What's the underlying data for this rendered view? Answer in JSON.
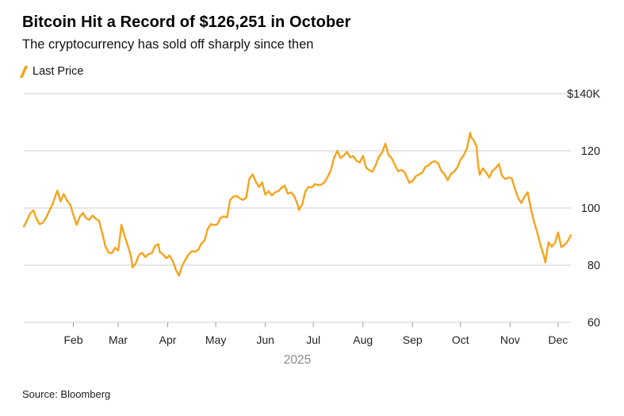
{
  "colors": {
    "accent_orange": "#F7A31C",
    "gridline": "#CFCFCF",
    "tick": "#9A9A9A",
    "axis_text": "#1F1F1F",
    "year_label": "#8A8A8A"
  },
  "chart_data": {
    "type": "line",
    "title": "Bitcoin Hit a Record of $126,251 in October",
    "subtitle": "The cryptocurrency has sold off sharply since then",
    "source": "Source: Bloomberg",
    "legend": [
      {
        "name": "Last Price",
        "color": "#F7A31C"
      }
    ],
    "x": {
      "year_label": "2025",
      "domain_days": [
        0,
        342
      ],
      "month_ticks": [
        {
          "label": "Feb",
          "day": 31
        },
        {
          "label": "Mar",
          "day": 59
        },
        {
          "label": "Apr",
          "day": 90
        },
        {
          "label": "May",
          "day": 120
        },
        {
          "label": "Jun",
          "day": 151
        },
        {
          "label": "Jul",
          "day": 181
        },
        {
          "label": "Aug",
          "day": 212
        },
        {
          "label": "Sep",
          "day": 243
        },
        {
          "label": "Oct",
          "day": 273
        },
        {
          "label": "Nov",
          "day": 304
        },
        {
          "label": "Dec",
          "day": 334
        }
      ]
    },
    "y": {
      "range": [
        60,
        140
      ],
      "unit": "thousand USD",
      "ticks": [
        {
          "label": "60",
          "value": 60
        },
        {
          "label": "80",
          "value": 80
        },
        {
          "label": "100",
          "value": 100
        },
        {
          "label": "120",
          "value": 120
        },
        {
          "label": "$140K",
          "value": 140
        }
      ]
    },
    "series": [
      {
        "name": "Last Price",
        "color": "#F7A31C",
        "points_day_value": [
          [
            0,
            93.5
          ],
          [
            2,
            95.6
          ],
          [
            4,
            98.1
          ],
          [
            6,
            99.2
          ],
          [
            8,
            96.1
          ],
          [
            10,
            94.3
          ],
          [
            12,
            94.9
          ],
          [
            14,
            96.6
          ],
          [
            16,
            99.1
          ],
          [
            18,
            101.4
          ],
          [
            20,
            104.6
          ],
          [
            21,
            106.1
          ],
          [
            23,
            102.3
          ],
          [
            25,
            104.9
          ],
          [
            27,
            102.6
          ],
          [
            29,
            101.2
          ],
          [
            31,
            97.6
          ],
          [
            33,
            94.1
          ],
          [
            35,
            96.9
          ],
          [
            37,
            98.3
          ],
          [
            39,
            96.4
          ],
          [
            41,
            95.9
          ],
          [
            43,
            97.4
          ],
          [
            45,
            96.2
          ],
          [
            47,
            95.6
          ],
          [
            49,
            91.2
          ],
          [
            51,
            86.6
          ],
          [
            53,
            84.4
          ],
          [
            55,
            84.2
          ],
          [
            57,
            86.1
          ],
          [
            59,
            85.2
          ],
          [
            60,
            89.3
          ],
          [
            61,
            94.1
          ],
          [
            63,
            90.2
          ],
          [
            65,
            86.9
          ],
          [
            67,
            83.1
          ],
          [
            68,
            79.2
          ],
          [
            70,
            80.6
          ],
          [
            72,
            83.6
          ],
          [
            74,
            84.3
          ],
          [
            76,
            82.8
          ],
          [
            78,
            83.9
          ],
          [
            80,
            84.1
          ],
          [
            82,
            86.7
          ],
          [
            84,
            87.4
          ],
          [
            85,
            84.6
          ],
          [
            87,
            83.8
          ],
          [
            89,
            82.4
          ],
          [
            91,
            83.4
          ],
          [
            93,
            81.6
          ],
          [
            95,
            78.5
          ],
          [
            97,
            76.3
          ],
          [
            99,
            79.7
          ],
          [
            101,
            81.9
          ],
          [
            103,
            83.7
          ],
          [
            105,
            84.9
          ],
          [
            107,
            84.7
          ],
          [
            109,
            85.3
          ],
          [
            111,
            87.5
          ],
          [
            113,
            88.7
          ],
          [
            115,
            92.7
          ],
          [
            117,
            94.4
          ],
          [
            119,
            94
          ],
          [
            121,
            94.3
          ],
          [
            123,
            96.5
          ],
          [
            125,
            97.1
          ],
          [
            127,
            96.6
          ],
          [
            129,
            102.9
          ],
          [
            131,
            104
          ],
          [
            133,
            104.2
          ],
          [
            135,
            103.4
          ],
          [
            137,
            102.8
          ],
          [
            139,
            103.6
          ],
          [
            141,
            110.2
          ],
          [
            143,
            111.8
          ],
          [
            145,
            109.3
          ],
          [
            147,
            107.3
          ],
          [
            149,
            109
          ],
          [
            151,
            104.7
          ],
          [
            153,
            105.9
          ],
          [
            155,
            104.4
          ],
          [
            157,
            105.5
          ],
          [
            159,
            105.8
          ],
          [
            161,
            107
          ],
          [
            163,
            107.9
          ],
          [
            165,
            105
          ],
          [
            167,
            105.5
          ],
          [
            169,
            104.2
          ],
          [
            171,
            101.5
          ],
          [
            172,
            99.3
          ],
          [
            174,
            101.2
          ],
          [
            176,
            105.8
          ],
          [
            178,
            107.4
          ],
          [
            180,
            107.2
          ],
          [
            182,
            108.4
          ],
          [
            184,
            108
          ],
          [
            186,
            108.2
          ],
          [
            188,
            109
          ],
          [
            190,
            110.9
          ],
          [
            192,
            113.3
          ],
          [
            194,
            117.7
          ],
          [
            196,
            120
          ],
          [
            198,
            117.5
          ],
          [
            200,
            118.3
          ],
          [
            202,
            119.6
          ],
          [
            204,
            117.7
          ],
          [
            206,
            118.2
          ],
          [
            208,
            116.5
          ],
          [
            210,
            115.9
          ],
          [
            212,
            118.3
          ],
          [
            214,
            114.1
          ],
          [
            216,
            113.2
          ],
          [
            218,
            112.7
          ],
          [
            220,
            115.1
          ],
          [
            222,
            118
          ],
          [
            224,
            119.4
          ],
          [
            226,
            122.5
          ],
          [
            228,
            118.6
          ],
          [
            230,
            117.4
          ],
          [
            232,
            115
          ],
          [
            234,
            112.9
          ],
          [
            236,
            113.4
          ],
          [
            238,
            112.5
          ],
          [
            240,
            110.1
          ],
          [
            241,
            108.8
          ],
          [
            243,
            109.4
          ],
          [
            245,
            111.1
          ],
          [
            247,
            111.7
          ],
          [
            249,
            112.3
          ],
          [
            251,
            114.4
          ],
          [
            253,
            114.9
          ],
          [
            255,
            116
          ],
          [
            257,
            116.4
          ],
          [
            259,
            115.7
          ],
          [
            261,
            113
          ],
          [
            263,
            111.8
          ],
          [
            265,
            109.7
          ],
          [
            267,
            112
          ],
          [
            269,
            112.7
          ],
          [
            271,
            114.2
          ],
          [
            273,
            116.9
          ],
          [
            275,
            118.4
          ],
          [
            277,
            120.8
          ],
          [
            279,
            126.3
          ],
          [
            280,
            124.4
          ],
          [
            281,
            124
          ],
          [
            283,
            121.6
          ],
          [
            284,
            115.1
          ],
          [
            285,
            111.6
          ],
          [
            287,
            113.9
          ],
          [
            289,
            112.4
          ],
          [
            291,
            110.7
          ],
          [
            293,
            113
          ],
          [
            295,
            114
          ],
          [
            297,
            115.4
          ],
          [
            299,
            111.3
          ],
          [
            301,
            110.1
          ],
          [
            303,
            110.7
          ],
          [
            305,
            110.4
          ],
          [
            307,
            106.7
          ],
          [
            309,
            103.5
          ],
          [
            311,
            101.7
          ],
          [
            313,
            104
          ],
          [
            315,
            105.5
          ],
          [
            317,
            99.6
          ],
          [
            319,
            95.2
          ],
          [
            321,
            91.4
          ],
          [
            323,
            87
          ],
          [
            325,
            83.5
          ],
          [
            326,
            80.9
          ],
          [
            328,
            88
          ],
          [
            330,
            86.5
          ],
          [
            332,
            87.7
          ],
          [
            334,
            91.5
          ],
          [
            336,
            86.3
          ],
          [
            338,
            87
          ],
          [
            340,
            88.4
          ],
          [
            342,
            90.5
          ]
        ]
      }
    ]
  }
}
